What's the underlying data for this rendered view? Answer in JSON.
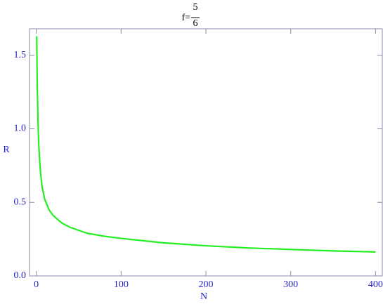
{
  "chart_data": {
    "type": "line",
    "title": {
      "lhs": "f=",
      "numerator": "5",
      "denominator": "6"
    },
    "x_label": "N",
    "y_label": "R",
    "xlim": [
      -8,
      408
    ],
    "ylim": [
      0,
      1.68
    ],
    "xticks": [
      0,
      100,
      200,
      300,
      400
    ],
    "yticks": [
      {
        "value": 0,
        "label": "0.0"
      },
      0.5,
      {
        "value": 1,
        "label": "1.0"
      },
      1.5
    ],
    "series": [
      {
        "color": "#22ee22",
        "x": [
          0.5,
          1,
          2,
          3,
          5,
          7,
          10,
          15,
          20,
          30,
          40,
          60,
          80,
          100,
          150,
          200,
          250,
          300,
          350,
          400
        ],
        "values": [
          1.63,
          1.35,
          1.05,
          0.88,
          0.7,
          0.6,
          0.52,
          0.45,
          0.41,
          0.36,
          0.33,
          0.29,
          0.27,
          0.255,
          0.225,
          0.205,
          0.19,
          0.18,
          0.17,
          0.163
        ]
      }
    ]
  }
}
